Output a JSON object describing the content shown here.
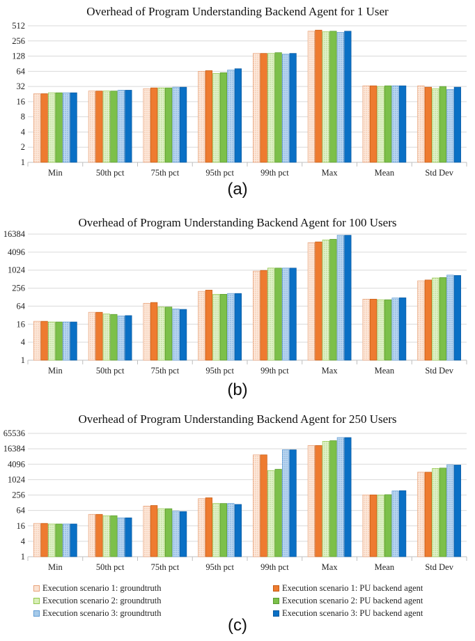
{
  "series_styles": [
    {
      "fill": "#fbe3d3",
      "stroke": "#e8a27a",
      "pattern": "dots-peach"
    },
    {
      "fill": "#ee7b30",
      "stroke": "#c55a11",
      "pattern": "solid"
    },
    {
      "fill": "#d9eeb8",
      "stroke": "#92c84a",
      "pattern": "dots-green"
    },
    {
      "fill": "#7cc04a",
      "stroke": "#5a9a2f",
      "pattern": "solid"
    },
    {
      "fill": "#a7cbea",
      "stroke": "#5e9ad3",
      "pattern": "dots-blue"
    },
    {
      "fill": "#0a70c5",
      "stroke": "#0b5aa0",
      "pattern": "solid"
    }
  ],
  "legend": [
    "Execution scenario 1: groundtruth",
    "Execution scenario 1: PU backend agent",
    "Execution scenario 2: groundtruth",
    "Execution scenario 2: PU backend agent",
    "Execution scenario 3: groundtruth",
    "Execution scenario 3: PU backend agent"
  ],
  "chart_data": [
    {
      "type": "bar",
      "label": "(a)",
      "title": "Overhead of Program Understanding Backend Agent for 1 User",
      "scale": "log2",
      "yticks": [
        1,
        2,
        4,
        8,
        16,
        32,
        64,
        128,
        256,
        512
      ],
      "ylim": [
        1,
        512
      ],
      "grid": true,
      "categories": [
        "Min",
        "50th pct",
        "75th pct",
        "95th pct",
        "99th pct",
        "Max",
        "Mean",
        "Std Dev"
      ],
      "series": [
        {
          "name": "Execution scenario 1: groundtruth",
          "values": [
            23,
            26,
            29,
            64,
            145,
            400,
            33,
            33
          ]
        },
        {
          "name": "Execution scenario 1: PU backend agent",
          "values": [
            23,
            26,
            30,
            66,
            145,
            420,
            33,
            31
          ]
        },
        {
          "name": "Execution scenario 2: groundtruth",
          "values": [
            24,
            26,
            30,
            58,
            145,
            390,
            32,
            29
          ]
        },
        {
          "name": "Execution scenario 2: PU backend agent",
          "values": [
            24,
            26,
            30,
            60,
            150,
            400,
            33,
            32
          ]
        },
        {
          "name": "Execution scenario 3: groundtruth",
          "values": [
            24,
            27,
            31,
            68,
            140,
            380,
            33,
            28
          ]
        },
        {
          "name": "Execution scenario 3: PU backend agent",
          "values": [
            24,
            27,
            31,
            72,
            145,
            400,
            33,
            31
          ]
        }
      ]
    },
    {
      "type": "bar",
      "label": "(b)",
      "title": "Overhead of Program Understanding Backend Agent for 100 Users",
      "scale": "log2",
      "yticks": [
        1,
        4,
        16,
        64,
        256,
        1024,
        4096,
        16384
      ],
      "ylim": [
        1,
        16384
      ],
      "grid": true,
      "categories": [
        "Min",
        "50th pct",
        "75th pct",
        "95th pct",
        "99th pct",
        "Max",
        "Mean",
        "Std Dev"
      ],
      "series": [
        {
          "name": "Execution scenario 1: groundtruth",
          "values": [
            20,
            40,
            80,
            200,
            950,
            8500,
            110,
            450
          ]
        },
        {
          "name": "Execution scenario 1: PU backend agent",
          "values": [
            20,
            40,
            85,
            220,
            1000,
            9000,
            110,
            480
          ]
        },
        {
          "name": "Execution scenario 2: groundtruth",
          "values": [
            19,
            35,
            60,
            160,
            1200,
            10500,
            105,
            560
          ]
        },
        {
          "name": "Execution scenario 2: PU backend agent",
          "values": [
            19,
            34,
            60,
            160,
            1200,
            11000,
            105,
            580
          ]
        },
        {
          "name": "Execution scenario 3: groundtruth",
          "values": [
            19,
            30,
            52,
            170,
            1200,
            15000,
            120,
            700
          ]
        },
        {
          "name": "Execution scenario 3: PU backend agent",
          "values": [
            19,
            31,
            50,
            170,
            1200,
            15000,
            122,
            680
          ]
        }
      ]
    },
    {
      "type": "bar",
      "label": "(c)",
      "title": "Overhead of Program Understanding Backend Agent for 250 Users",
      "scale": "log2",
      "yticks": [
        1,
        4,
        16,
        64,
        256,
        1024,
        4096,
        16384,
        65536
      ],
      "ylim": [
        1,
        65536
      ],
      "grid": true,
      "categories": [
        "Min",
        "50th pct",
        "75th pct",
        "95th pct",
        "99th pct",
        "Max",
        "Mean",
        "Std Dev"
      ],
      "series": [
        {
          "name": "Execution scenario 1: groundtruth",
          "values": [
            20,
            45,
            95,
            185,
            9500,
            22000,
            260,
            2000
          ]
        },
        {
          "name": "Execution scenario 1: PU backend agent",
          "values": [
            20,
            45,
            100,
            200,
            9500,
            22000,
            260,
            2000
          ]
        },
        {
          "name": "Execution scenario 2: groundtruth",
          "values": [
            19,
            40,
            75,
            120,
            2300,
            32000,
            255,
            2800
          ]
        },
        {
          "name": "Execution scenario 2: PU backend agent",
          "values": [
            19,
            40,
            75,
            120,
            2600,
            34000,
            265,
            2900
          ]
        },
        {
          "name": "Execution scenario 3: groundtruth",
          "values": [
            19,
            33,
            60,
            120,
            15000,
            45000,
            370,
            3900
          ]
        },
        {
          "name": "Execution scenario 3: PU backend agent",
          "values": [
            19,
            33,
            58,
            110,
            15000,
            45000,
            380,
            3800
          ]
        }
      ]
    }
  ]
}
